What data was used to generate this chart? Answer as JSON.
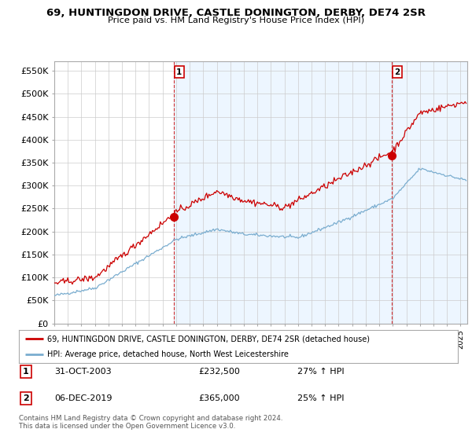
{
  "title": "69, HUNTINGDON DRIVE, CASTLE DONINGTON, DERBY, DE74 2SR",
  "subtitle": "Price paid vs. HM Land Registry's House Price Index (HPI)",
  "ylabel_ticks": [
    "£0",
    "£50K",
    "£100K",
    "£150K",
    "£200K",
    "£250K",
    "£300K",
    "£350K",
    "£400K",
    "£450K",
    "£500K",
    "£550K"
  ],
  "ytick_values": [
    0,
    50000,
    100000,
    150000,
    200000,
    250000,
    300000,
    350000,
    400000,
    450000,
    500000,
    550000
  ],
  "ylim": [
    0,
    570000
  ],
  "xlim_start": 1995.0,
  "xlim_end": 2025.5,
  "sale1_x": 2003.83,
  "sale1_y": 232500,
  "sale2_x": 2019.92,
  "sale2_y": 365000,
  "sale1_label": "1",
  "sale2_label": "2",
  "sale1_date": "31-OCT-2003",
  "sale1_price": "£232,500",
  "sale1_hpi": "27% ↑ HPI",
  "sale2_date": "06-DEC-2019",
  "sale2_price": "£365,000",
  "sale2_hpi": "25% ↑ HPI",
  "legend_line1": "69, HUNTINGDON DRIVE, CASTLE DONINGTON, DERBY, DE74 2SR (detached house)",
  "legend_line2": "HPI: Average price, detached house, North West Leicestershire",
  "footer": "Contains HM Land Registry data © Crown copyright and database right 2024.\nThis data is licensed under the Open Government Licence v3.0.",
  "red_color": "#cc0000",
  "blue_color": "#7aadcf",
  "shade_color": "#ddeeff",
  "background_color": "#ffffff",
  "grid_color": "#cccccc"
}
